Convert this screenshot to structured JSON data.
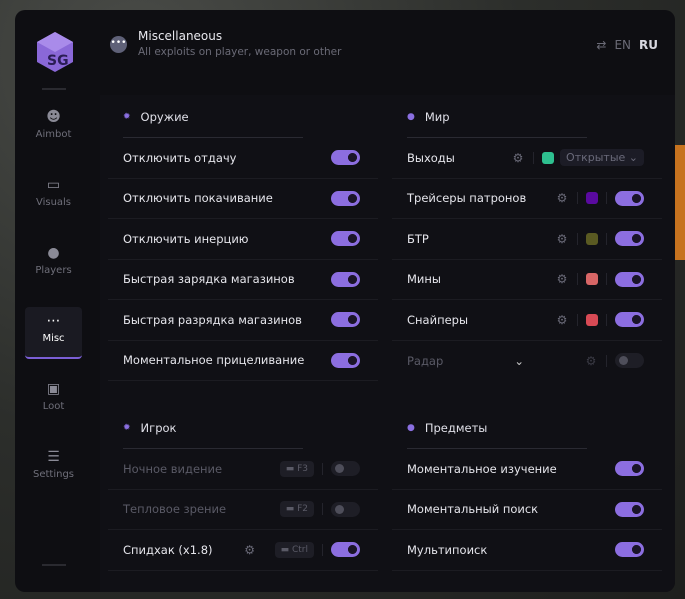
{
  "header": {
    "title": "Miscellaneous",
    "subtitle": "All exploits on player, weapon or other",
    "icon": "dots-icon"
  },
  "lang": {
    "en": "EN",
    "ru": "RU",
    "active": "RU"
  },
  "logo": "SG",
  "sidebar": [
    {
      "label": "Aimbot",
      "icon": "alien-icon"
    },
    {
      "label": "Visuals",
      "icon": "gamepad-icon"
    },
    {
      "label": "Players",
      "icon": "users-icon"
    },
    {
      "label": "Misc",
      "icon": "dots-icon",
      "active": true
    },
    {
      "label": "Loot",
      "icon": "briefcase-icon"
    },
    {
      "label": "Settings",
      "icon": "list-icon"
    }
  ],
  "weapon": {
    "title": "Оружие",
    "rows": [
      {
        "label": "Отключить отдачу",
        "on": true
      },
      {
        "label": "Отключить покачивание",
        "on": true
      },
      {
        "label": "Отключить инерцию",
        "on": true
      },
      {
        "label": "Быстрая зарядка магазинов",
        "on": true
      },
      {
        "label": "Быстрая разрядка магазинов",
        "on": true
      },
      {
        "label": "Моментальное прицеливание",
        "on": true
      }
    ]
  },
  "world": {
    "title": "Мир",
    "exits": {
      "label": "Выходы",
      "color": "#2ec08f",
      "select": "Открытые"
    },
    "rows": [
      {
        "label": "Трейсеры патронов",
        "color": "#5a0aa0",
        "on": true
      },
      {
        "label": "БТР",
        "color": "#5a5a22",
        "on": true
      },
      {
        "label": "Мины",
        "color": "#d86666",
        "on": true
      },
      {
        "label": "Снайперы",
        "color": "#d84a55",
        "on": true
      }
    ],
    "radar": {
      "label": "Радар",
      "on": false
    }
  },
  "player": {
    "title": "Игрок",
    "rows": [
      {
        "label": "Ночное видение",
        "key": "F3",
        "on": false
      },
      {
        "label": "Тепловое зрение",
        "key": "F2",
        "on": false
      },
      {
        "label": "Спидхак (x1.8)",
        "key": "Ctrl",
        "on": true
      }
    ]
  },
  "items": {
    "title": "Предметы",
    "rows": [
      {
        "label": "Моментальное изучение",
        "on": true
      },
      {
        "label": "Моментальный поиск",
        "on": true
      },
      {
        "label": "Мультипоиск",
        "on": true
      }
    ]
  }
}
